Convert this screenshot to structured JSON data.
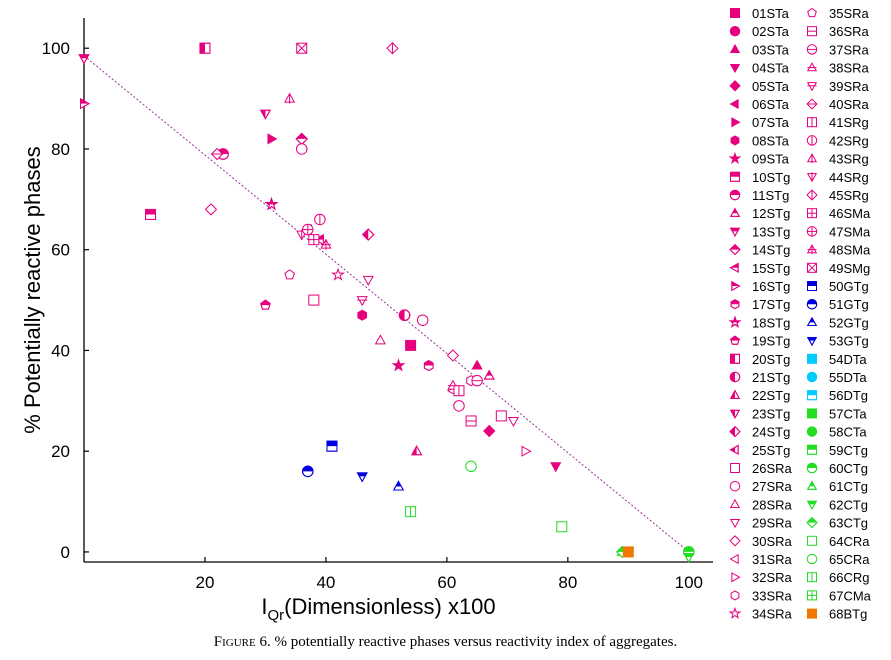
{
  "figure": {
    "caption_label": "Figure 6.",
    "caption_text": " % potentially reactive phases versus reactivity index of aggregates."
  },
  "chart_data": {
    "type": "scatter",
    "title": "",
    "xlabel_main": "I",
    "xlabel_sub": "Qr",
    "xlabel_rest": "(Dimensionless) x100",
    "ylabel": "% Potentially reactive phases",
    "xlim": [
      0,
      104
    ],
    "ylim": [
      -2,
      106
    ],
    "x_ticks": [
      20,
      40,
      60,
      80,
      100
    ],
    "y_ticks": [
      0,
      20,
      40,
      60,
      80,
      100
    ],
    "grid": false,
    "legend_position": "right",
    "colors": {
      "magenta": "#e6007e",
      "blue": "#0000e0",
      "cyan": "#00ccff",
      "green": "#22dd22",
      "orange": "#f07800",
      "trendline": "#993399"
    },
    "trendline": {
      "x": [
        0,
        100
      ],
      "y": [
        98.5,
        0
      ]
    },
    "series": [
      {
        "name": "01STa",
        "marker": "square",
        "fill": "full",
        "color": "magenta",
        "points": [
          [
            54,
            41
          ]
        ]
      },
      {
        "name": "02STa",
        "marker": "circle",
        "fill": "full",
        "color": "magenta",
        "points": [
          [
            53,
            47
          ]
        ]
      },
      {
        "name": "03STa",
        "marker": "triangle-up",
        "fill": "full",
        "color": "magenta",
        "points": [
          [
            65,
            37
          ]
        ]
      },
      {
        "name": "04STa",
        "marker": "triangle-down",
        "fill": "full",
        "color": "magenta",
        "points": [
          [
            78,
            17
          ]
        ]
      },
      {
        "name": "05STa",
        "marker": "diamond",
        "fill": "full",
        "color": "magenta",
        "points": [
          [
            67,
            24
          ]
        ]
      },
      {
        "name": "06STa",
        "marker": "triangle-left",
        "fill": "full",
        "color": "magenta",
        "points": [
          [
            37,
            64
          ]
        ]
      },
      {
        "name": "07STa",
        "marker": "triangle-right",
        "fill": "full",
        "color": "magenta",
        "points": [
          [
            31,
            82
          ]
        ]
      },
      {
        "name": "08STa",
        "marker": "hexagon",
        "fill": "full",
        "color": "magenta",
        "points": [
          [
            46,
            47
          ]
        ]
      },
      {
        "name": "09STa",
        "marker": "star",
        "fill": "full",
        "color": "magenta",
        "points": [
          [
            52,
            37
          ]
        ]
      },
      {
        "name": "10STg",
        "marker": "square",
        "fill": "top",
        "color": "magenta",
        "points": [
          [
            11,
            67
          ]
        ]
      },
      {
        "name": "11STg",
        "marker": "circle",
        "fill": "top",
        "color": "magenta",
        "points": [
          [
            23,
            79
          ]
        ]
      },
      {
        "name": "12STg",
        "marker": "triangle-up",
        "fill": "top",
        "color": "magenta",
        "points": [
          [
            67,
            35
          ]
        ]
      },
      {
        "name": "13STg",
        "marker": "triangle-down",
        "fill": "top",
        "color": "magenta",
        "points": [
          [
            0,
            98
          ]
        ]
      },
      {
        "name": "14STg",
        "marker": "diamond",
        "fill": "top",
        "color": "magenta",
        "points": [
          [
            36,
            82
          ]
        ]
      },
      {
        "name": "15STg",
        "marker": "triangle-left",
        "fill": "top",
        "color": "magenta",
        "points": [
          [
            39,
            62
          ]
        ]
      },
      {
        "name": "16STg",
        "marker": "triangle-right",
        "fill": "top",
        "color": "magenta",
        "points": [
          [
            0,
            89
          ]
        ]
      },
      {
        "name": "17STg",
        "marker": "hexagon",
        "fill": "top",
        "color": "magenta",
        "points": [
          [
            57,
            37
          ]
        ]
      },
      {
        "name": "18STg",
        "marker": "star",
        "fill": "top",
        "color": "magenta",
        "points": [
          [
            31,
            69
          ]
        ]
      },
      {
        "name": "19STg",
        "marker": "pentagon",
        "fill": "top",
        "color": "magenta",
        "points": [
          [
            30,
            49
          ]
        ]
      },
      {
        "name": "20STg",
        "marker": "square",
        "fill": "left",
        "color": "magenta",
        "points": [
          [
            20,
            100
          ]
        ]
      },
      {
        "name": "21STg",
        "marker": "circle",
        "fill": "left",
        "color": "magenta",
        "points": [
          [
            53,
            47
          ]
        ]
      },
      {
        "name": "22STg",
        "marker": "triangle-up",
        "fill": "left",
        "color": "magenta",
        "points": [
          [
            55,
            20
          ]
        ]
      },
      {
        "name": "23STg",
        "marker": "triangle-down",
        "fill": "left",
        "color": "magenta",
        "points": [
          [
            30,
            87
          ]
        ]
      },
      {
        "name": "24STg",
        "marker": "diamond",
        "fill": "left",
        "color": "magenta",
        "points": [
          [
            47,
            63
          ]
        ]
      },
      {
        "name": "25STg",
        "marker": "triangle-left",
        "fill": "left",
        "color": "magenta",
        "points": [
          [
            38,
            62
          ]
        ]
      },
      {
        "name": "26SRa",
        "marker": "square",
        "fill": "none",
        "color": "magenta",
        "points": [
          [
            38,
            50
          ],
          [
            69,
            27
          ]
        ]
      },
      {
        "name": "27SRa",
        "marker": "circle",
        "fill": "none",
        "color": "magenta",
        "points": [
          [
            36,
            80
          ],
          [
            56,
            46
          ],
          [
            62,
            29
          ]
        ]
      },
      {
        "name": "28SRa",
        "marker": "triangle-up",
        "fill": "none",
        "color": "magenta",
        "points": [
          [
            49,
            42
          ]
        ]
      },
      {
        "name": "29SRa",
        "marker": "triangle-down",
        "fill": "none",
        "color": "magenta",
        "points": [
          [
            47,
            54
          ],
          [
            71,
            26
          ]
        ]
      },
      {
        "name": "30SRa",
        "marker": "diamond",
        "fill": "none",
        "color": "magenta",
        "points": [
          [
            21,
            68
          ],
          [
            61,
            39
          ]
        ]
      },
      {
        "name": "31SRa",
        "marker": "triangle-left",
        "fill": "none",
        "color": "magenta",
        "points": [
          [
            61,
            32
          ]
        ]
      },
      {
        "name": "32SRa",
        "marker": "triangle-right",
        "fill": "none",
        "color": "magenta",
        "points": [
          [
            73,
            20
          ]
        ]
      },
      {
        "name": "33SRa",
        "marker": "hexagon",
        "fill": "none",
        "color": "magenta",
        "points": [
          [
            64,
            34
          ]
        ]
      },
      {
        "name": "34SRa",
        "marker": "star",
        "fill": "none",
        "color": "magenta",
        "points": [
          [
            42,
            55
          ]
        ]
      },
      {
        "name": "35SRa",
        "marker": "pentagon",
        "fill": "none",
        "color": "magenta",
        "points": [
          [
            34,
            55
          ]
        ]
      },
      {
        "name": "36SRa",
        "marker": "square-h",
        "fill": "none",
        "color": "magenta",
        "points": [
          [
            64,
            26
          ]
        ]
      },
      {
        "name": "37SRa",
        "marker": "circle-h",
        "fill": "none",
        "color": "magenta",
        "points": [
          [
            65,
            34
          ]
        ]
      },
      {
        "name": "38SRa",
        "marker": "triangle-up-h",
        "fill": "none",
        "color": "magenta",
        "points": [
          [
            61,
            33
          ]
        ]
      },
      {
        "name": "39SRa",
        "marker": "triangle-down-h",
        "fill": "none",
        "color": "magenta",
        "points": [
          [
            46,
            50
          ]
        ]
      },
      {
        "name": "40SRa",
        "marker": "diamond-h",
        "fill": "none",
        "color": "magenta",
        "points": [
          [
            22,
            79
          ]
        ]
      },
      {
        "name": "41SRg",
        "marker": "square-v",
        "fill": "none",
        "color": "magenta",
        "points": [
          [
            62,
            32
          ]
        ]
      },
      {
        "name": "42SRg",
        "marker": "circle-v",
        "fill": "none",
        "color": "magenta",
        "points": [
          [
            39,
            66
          ]
        ]
      },
      {
        "name": "43SRg",
        "marker": "triangle-up-v",
        "fill": "none",
        "color": "magenta",
        "points": [
          [
            34,
            90
          ]
        ]
      },
      {
        "name": "44SRg",
        "marker": "triangle-down-v",
        "fill": "none",
        "color": "magenta",
        "points": [
          [
            36,
            63
          ]
        ]
      },
      {
        "name": "45SRg",
        "marker": "diamond-v",
        "fill": "none",
        "color": "magenta",
        "points": [
          [
            51,
            100
          ]
        ]
      },
      {
        "name": "46SMa",
        "marker": "square-plus",
        "fill": "none",
        "color": "magenta",
        "points": [
          [
            38,
            62
          ]
        ]
      },
      {
        "name": "47SMa",
        "marker": "circle-plus",
        "fill": "none",
        "color": "magenta",
        "points": [
          [
            37,
            64
          ]
        ]
      },
      {
        "name": "48SMa",
        "marker": "triangle-up-plus",
        "fill": "none",
        "color": "magenta",
        "points": [
          [
            40,
            61
          ]
        ]
      },
      {
        "name": "49SMg",
        "marker": "square-x",
        "fill": "none",
        "color": "magenta",
        "points": [
          [
            36,
            100
          ]
        ]
      },
      {
        "name": "50GTg",
        "marker": "square",
        "fill": "top",
        "color": "blue",
        "points": [
          [
            41,
            21
          ]
        ]
      },
      {
        "name": "51GTg",
        "marker": "circle",
        "fill": "top",
        "color": "blue",
        "points": [
          [
            37,
            16
          ]
        ]
      },
      {
        "name": "52GTg",
        "marker": "triangle-up",
        "fill": "top",
        "color": "blue",
        "points": [
          [
            52,
            13
          ]
        ]
      },
      {
        "name": "53GTg",
        "marker": "triangle-down",
        "fill": "top",
        "color": "blue",
        "points": [
          [
            46,
            15
          ]
        ]
      },
      {
        "name": "54DTa",
        "marker": "square",
        "fill": "full",
        "color": "cyan",
        "points": []
      },
      {
        "name": "55DTa",
        "marker": "circle",
        "fill": "full",
        "color": "cyan",
        "points": []
      },
      {
        "name": "56DTg",
        "marker": "square",
        "fill": "top",
        "color": "cyan",
        "points": []
      },
      {
        "name": "57CTa",
        "marker": "square",
        "fill": "full",
        "color": "green",
        "points": []
      },
      {
        "name": "58CTa",
        "marker": "circle",
        "fill": "full",
        "color": "green",
        "points": []
      },
      {
        "name": "59CTg",
        "marker": "square",
        "fill": "top",
        "color": "green",
        "points": []
      },
      {
        "name": "60CTg",
        "marker": "circle",
        "fill": "top",
        "color": "green",
        "points": [
          [
            100,
            0
          ]
        ]
      },
      {
        "name": "61CTg",
        "marker": "triangle-up",
        "fill": "top",
        "color": "green",
        "points": [
          [
            89,
            0
          ]
        ]
      },
      {
        "name": "62CTg",
        "marker": "triangle-down",
        "fill": "top",
        "color": "green",
        "points": [
          [
            100,
            -1
          ]
        ]
      },
      {
        "name": "63CTg",
        "marker": "diamond",
        "fill": "top",
        "color": "green",
        "points": [
          [
            89,
            0
          ]
        ]
      },
      {
        "name": "64CRa",
        "marker": "square",
        "fill": "none",
        "color": "green",
        "points": [
          [
            79,
            5
          ]
        ]
      },
      {
        "name": "65CRa",
        "marker": "circle",
        "fill": "none",
        "color": "green",
        "points": [
          [
            64,
            17
          ]
        ]
      },
      {
        "name": "66CRg",
        "marker": "square-v",
        "fill": "none",
        "color": "green",
        "points": [
          [
            54,
            8
          ]
        ]
      },
      {
        "name": "67CMa",
        "marker": "square-plus",
        "fill": "none",
        "color": "green",
        "points": []
      },
      {
        "name": "68BTg",
        "marker": "square",
        "fill": "full",
        "color": "orange",
        "points": [
          [
            90,
            0
          ]
        ]
      }
    ]
  }
}
